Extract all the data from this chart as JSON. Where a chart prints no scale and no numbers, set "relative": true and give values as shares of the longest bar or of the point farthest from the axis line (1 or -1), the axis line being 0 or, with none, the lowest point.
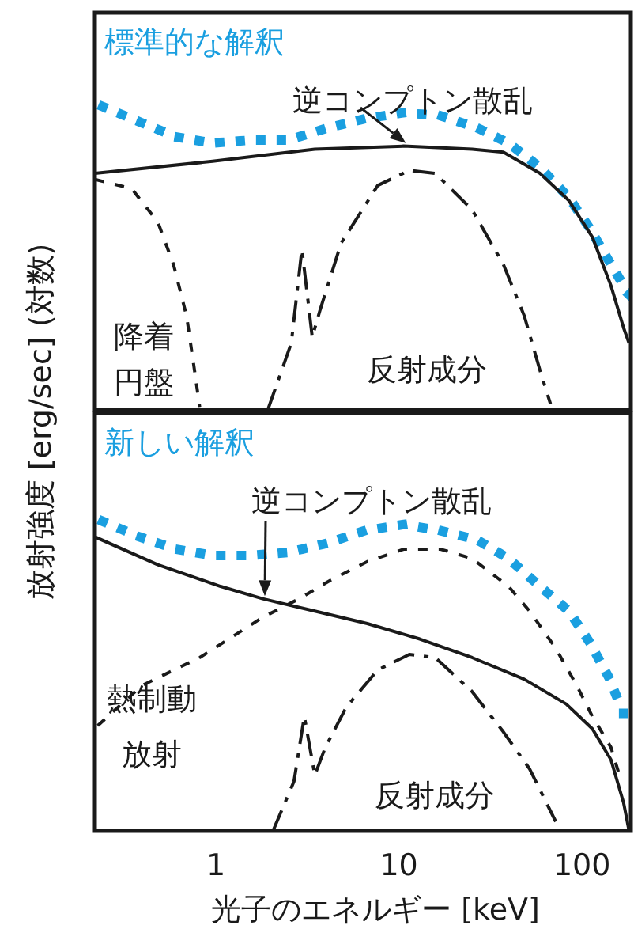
{
  "chart_data": [
    {
      "type": "line",
      "title": "標準的な解釈",
      "ylabel": "放射強度 [erg/sec] (対数)",
      "relative": true,
      "log": "x",
      "xlim": [
        0.218,
        185
      ],
      "tick_labels": false,
      "series": [
        {
          "color": "#1a9fe0",
          "line_style": "dotted",
          "x": [
            0.241,
            0.382,
            0.607,
            0.96,
            1.57,
            2.5,
            4.09,
            6.5,
            10.6,
            16.9,
            26.8,
            39.7,
            59.0,
            84.9,
            110,
            144,
            181
          ],
          "values": [
            1.0,
            0.95,
            0.9,
            0.88,
            0.89,
            0.89,
            0.93,
            0.96,
            0.98,
            0.97,
            0.93,
            0.88,
            0.8,
            0.7,
            0.6,
            0.48,
            0.38
          ]
        },
        {
          "name": "逆コンプトン散乱",
          "color": "#1a1a1a",
          "line_style": "solid",
          "x": [
            0.218,
            0.96,
            3.47,
            10.6,
            25.1,
            37.2,
            59.0,
            84.9,
            114,
            144,
            169,
            181
          ],
          "values": [
            0.78,
            0.82,
            0.86,
            0.87,
            0.86,
            0.85,
            0.78,
            0.69,
            0.57,
            0.41,
            0.27,
            0.22
          ]
        },
        {
          "name": "降着円盤",
          "color": "#1a1a1a",
          "line_style": "dashed",
          "x": [
            0.218,
            0.346,
            0.481,
            0.586,
            0.691,
            0.764,
            0.815
          ],
          "values": [
            0.76,
            0.73,
            0.62,
            0.48,
            0.31,
            0.13,
            0.01
          ]
        },
        {
          "name": "反射成分",
          "color": "#1a1a1a",
          "line_style": "dashdot",
          "x": [
            1.92,
            2.58,
            2.95,
            3.36,
            3.71,
            4.83,
            7.66,
            11.4,
            15.8,
            25.1,
            37.2,
            48.4,
            59.0,
            67.3
          ],
          "values": [
            0,
            0.22,
            0.53,
            0.24,
            0.33,
            0.55,
            0.74,
            0.79,
            0.78,
            0.66,
            0.48,
            0.31,
            0.13,
            0.02
          ]
        }
      ]
    },
    {
      "type": "line",
      "title": "新しい解釈",
      "xlabel": "光子のエネルギー [keV]",
      "relative": true,
      "log": "x",
      "xlim": [
        0.218,
        185
      ],
      "xticks": [
        1,
        10,
        100
      ],
      "tick_labels": "x",
      "series": [
        {
          "color": "#1a9fe0",
          "line_style": "dotted",
          "x": [
            0.241,
            0.382,
            0.607,
            0.96,
            1.57,
            2.5,
            4.09,
            6.5,
            10.6,
            16.9,
            26.8,
            39.7,
            59.0,
            84.9,
            110,
            139,
            169
          ],
          "values": [
            1.0,
            0.95,
            0.91,
            0.89,
            0.89,
            0.9,
            0.93,
            0.97,
            0.99,
            0.97,
            0.94,
            0.88,
            0.79,
            0.71,
            0.61,
            0.5,
            0.38
          ]
        },
        {
          "name": "逆コンプトン散乱",
          "color": "#1a1a1a",
          "line_style": "solid",
          "x": [
            0.218,
            0.481,
            1.06,
            1.8,
            3.47,
            6.71,
            13.0,
            25.1,
            48.4,
            82.0,
            114,
            144,
            169,
            181
          ],
          "values": [
            0.95,
            0.86,
            0.79,
            0.75,
            0.71,
            0.67,
            0.62,
            0.56,
            0.49,
            0.41,
            0.33,
            0.23,
            0.09,
            0
          ]
        },
        {
          "name": "熱制動放射",
          "color": "#1a1a1a",
          "line_style": "dashed",
          "x": [
            0.226,
            0.395,
            0.815,
            1.8,
            2.85,
            4.23,
            6.71,
            10.6,
            16.9,
            25.1,
            39.7,
            51.8,
            71.9,
            93.6,
            114,
            144,
            164
          ],
          "values": [
            0.34,
            0.47,
            0.56,
            0.69,
            0.75,
            0.81,
            0.87,
            0.91,
            0.91,
            0.88,
            0.79,
            0.71,
            0.59,
            0.47,
            0.37,
            0.27,
            0.16
          ]
        },
        {
          "name": "反射成分",
          "color": "#1a1a1a",
          "line_style": "dashdot",
          "x": [
            2.05,
            2.67,
            3.04,
            3.47,
            3.96,
            5.16,
            7.66,
            11.4,
            15.8,
            25.1,
            37.2,
            51.8,
            71.9
          ],
          "values": [
            0,
            0.16,
            0.37,
            0.18,
            0.27,
            0.4,
            0.52,
            0.57,
            0.56,
            0.45,
            0.32,
            0.2,
            0.03
          ]
        }
      ]
    }
  ]
}
